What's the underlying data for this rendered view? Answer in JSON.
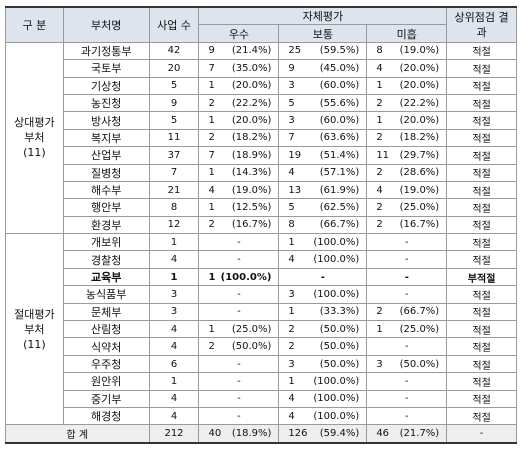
{
  "table": {
    "header": {
      "division": "구 분",
      "ministry": "부처명",
      "count": "사업 수",
      "self_eval": "자체평가",
      "excellent": "우수",
      "normal": "보통",
      "poor": "미흡",
      "review": "상위점검 결과"
    },
    "groups": [
      {
        "label": "상대평가 부처",
        "sub": "(11)",
        "rows": [
          {
            "name": "과기정통부",
            "count": "42",
            "excellent": [
              "9",
              "(21.4%)"
            ],
            "normal": [
              "25",
              "(59.5%)"
            ],
            "poor": [
              "8",
              "(19.0%)"
            ],
            "result": "적절"
          },
          {
            "name": "국토부",
            "count": "20",
            "excellent": [
              "7",
              "(35.0%)"
            ],
            "normal": [
              "9",
              "(45.0%)"
            ],
            "poor": [
              "4",
              "(20.0%)"
            ],
            "result": "적절"
          },
          {
            "name": "기상청",
            "count": "5",
            "excellent": [
              "1",
              "(20.0%)"
            ],
            "normal": [
              "3",
              "(60.0%)"
            ],
            "poor": [
              "1",
              "(20.0%)"
            ],
            "result": "적절"
          },
          {
            "name": "농진청",
            "count": "9",
            "excellent": [
              "2",
              "(22.2%)"
            ],
            "normal": [
              "5",
              "(55.6%)"
            ],
            "poor": [
              "2",
              "(22.2%)"
            ],
            "result": "적절"
          },
          {
            "name": "방사청",
            "count": "5",
            "excellent": [
              "1",
              "(20.0%)"
            ],
            "normal": [
              "3",
              "(60.0%)"
            ],
            "poor": [
              "1",
              "(20.0%)"
            ],
            "result": "적절"
          },
          {
            "name": "복지부",
            "count": "11",
            "excellent": [
              "2",
              "(18.2%)"
            ],
            "normal": [
              "7",
              "(63.6%)"
            ],
            "poor": [
              "2",
              "(18.2%)"
            ],
            "result": "적절"
          },
          {
            "name": "산업부",
            "count": "37",
            "excellent": [
              "7",
              "(18.9%)"
            ],
            "normal": [
              "19",
              "(51.4%)"
            ],
            "poor": [
              "11",
              "(29.7%)"
            ],
            "result": "적절"
          },
          {
            "name": "질병청",
            "count": "7",
            "excellent": [
              "1",
              "(14.3%)"
            ],
            "normal": [
              "4",
              "(57.1%)"
            ],
            "poor": [
              "2",
              "(28.6%)"
            ],
            "result": "적절"
          },
          {
            "name": "해수부",
            "count": "21",
            "excellent": [
              "4",
              "(19.0%)"
            ],
            "normal": [
              "13",
              "(61.9%)"
            ],
            "poor": [
              "4",
              "(19.0%)"
            ],
            "result": "적절"
          },
          {
            "name": "행안부",
            "count": "8",
            "excellent": [
              "1",
              "(12.5%)"
            ],
            "normal": [
              "5",
              "(62.5%)"
            ],
            "poor": [
              "2",
              "(25.0%)"
            ],
            "result": "적절"
          },
          {
            "name": "환경부",
            "count": "12",
            "excellent": [
              "2",
              "(16.7%)"
            ],
            "normal": [
              "8",
              "(66.7%)"
            ],
            "poor": [
              "2",
              "(16.7%)"
            ],
            "result": "적절"
          }
        ]
      },
      {
        "label": "절대평가 부처",
        "sub": "(11)",
        "rows": [
          {
            "name": "개보위",
            "count": "1",
            "excellent": "-",
            "normal": [
              "1",
              "(100.0%)"
            ],
            "poor": "-",
            "result": "적절"
          },
          {
            "name": "경찰청",
            "count": "4",
            "excellent": "-",
            "normal": [
              "4",
              "(100.0%)"
            ],
            "poor": "-",
            "result": "적절"
          },
          {
            "name": "교육부",
            "count": "1",
            "excellent": [
              "1",
              "(100.0%)"
            ],
            "normal": "-",
            "poor": "-",
            "result": "부적절",
            "emphasis": true
          },
          {
            "name": "농식품부",
            "count": "3",
            "excellent": "-",
            "normal": [
              "3",
              "(100.0%)"
            ],
            "poor": "-",
            "result": "적절"
          },
          {
            "name": "문체부",
            "count": "3",
            "excellent": "-",
            "normal": [
              "1",
              "(33.3%)"
            ],
            "poor": [
              "2",
              "(66.7%)"
            ],
            "result": "적절"
          },
          {
            "name": "산림청",
            "count": "4",
            "excellent": [
              "1",
              "(25.0%)"
            ],
            "normal": [
              "2",
              "(50.0%)"
            ],
            "poor": [
              "1",
              "(25.0%)"
            ],
            "result": "적절"
          },
          {
            "name": "식약처",
            "count": "4",
            "excellent": [
              "2",
              "(50.0%)"
            ],
            "normal": [
              "2",
              "(50.0%)"
            ],
            "poor": "-",
            "result": "적절"
          },
          {
            "name": "우주청",
            "count": "6",
            "excellent": "-",
            "normal": [
              "3",
              "(50.0%)"
            ],
            "poor": [
              "3",
              "(50.0%)"
            ],
            "result": "적절"
          },
          {
            "name": "원안위",
            "count": "1",
            "excellent": "-",
            "normal": [
              "1",
              "(100.0%)"
            ],
            "poor": "-",
            "result": "적절"
          },
          {
            "name": "중기부",
            "count": "4",
            "excellent": "-",
            "normal": [
              "4",
              "(100.0%)"
            ],
            "poor": "-",
            "result": "적절"
          },
          {
            "name": "해경청",
            "count": "4",
            "excellent": "-",
            "normal": [
              "4",
              "(100.0%)"
            ],
            "poor": "-",
            "result": "적절"
          }
        ]
      }
    ],
    "total": {
      "label": "합 계",
      "count": "212",
      "excellent": [
        "40",
        "(18.9%)"
      ],
      "normal": [
        "126",
        "(59.4%)"
      ],
      "poor": [
        "46",
        "(21.7%)"
      ],
      "result": "-"
    }
  }
}
